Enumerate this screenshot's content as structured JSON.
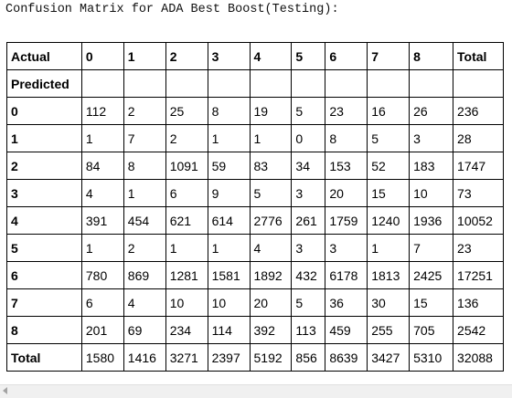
{
  "caption": "Confusion Matrix for ADA Best Boost(Testing):",
  "table": {
    "header": [
      "Actual",
      "0",
      "1",
      "2",
      "3",
      "4",
      "5",
      "6",
      "7",
      "8",
      "Total"
    ],
    "predicted_label": "Predicted",
    "rows": [
      [
        "0",
        "112",
        "2",
        "25",
        "8",
        "19",
        "5",
        "23",
        "16",
        "26",
        "236"
      ],
      [
        "1",
        "1",
        "7",
        "2",
        "1",
        "1",
        "0",
        "8",
        "5",
        "3",
        "28"
      ],
      [
        "2",
        "84",
        "8",
        "1091",
        "59",
        "83",
        "34",
        "153",
        "52",
        "183",
        "1747"
      ],
      [
        "3",
        "4",
        "1",
        "6",
        "9",
        "5",
        "3",
        "20",
        "15",
        "10",
        "73"
      ],
      [
        "4",
        "391",
        "454",
        "621",
        "614",
        "2776",
        "261",
        "1759",
        "1240",
        "1936",
        "10052"
      ],
      [
        "5",
        "1",
        "2",
        "1",
        "1",
        "4",
        "3",
        "3",
        "1",
        "7",
        "23"
      ],
      [
        "6",
        "780",
        "869",
        "1281",
        "1581",
        "1892",
        "432",
        "6178",
        "1813",
        "2425",
        "17251"
      ],
      [
        "7",
        "6",
        "4",
        "10",
        "10",
        "20",
        "5",
        "36",
        "30",
        "15",
        "136"
      ],
      [
        "8",
        "201",
        "69",
        "234",
        "114",
        "392",
        "113",
        "459",
        "255",
        "705",
        "2542"
      ],
      [
        "Total",
        "1580",
        "1416",
        "3271",
        "2397",
        "5192",
        "856",
        "8639",
        "3427",
        "5310",
        "32088"
      ]
    ]
  },
  "scrollbar": {
    "left_arrow_icon": "chevron-left-icon"
  }
}
